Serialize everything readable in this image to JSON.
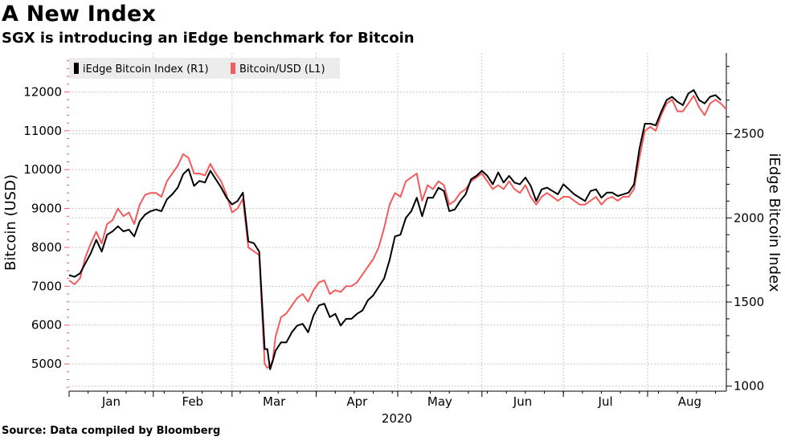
{
  "header": {
    "title": "A New Index",
    "subtitle": "SGX is introducing an iEdge benchmark for Bitcoin"
  },
  "footer": {
    "source": "Source: Data compiled by Bloomberg"
  },
  "colors": {
    "index_line": "#000000",
    "btc_line": "#f25c5c",
    "grid": "#c8c8c8",
    "axis": "#000000",
    "legend_bg": "#ececec"
  },
  "chart_data": {
    "type": "line",
    "title": "A New Index",
    "subtitle": "SGX is introducing an iEdge benchmark for Bitcoin",
    "xlabel": "2020",
    "x_ticks": [
      "Jan",
      "Feb",
      "Mar",
      "Apr",
      "May",
      "Jun",
      "Jul",
      "Aug"
    ],
    "x_range_days": [
      0,
      242
    ],
    "left_axis": {
      "label": "Bitcoin (USD)",
      "range": [
        4300,
        13000
      ],
      "ticks": [
        5000,
        6000,
        7000,
        8000,
        9000,
        10000,
        11000,
        12000
      ]
    },
    "right_axis": {
      "label": "iEdge Bitcoin Index",
      "range": [
        970,
        2980
      ],
      "ticks": [
        1000,
        1500,
        2000,
        2500
      ]
    },
    "legend": {
      "position": "top-left",
      "entries": [
        "iEdge Bitcoin Index (R1)",
        "Bitcoin/USD (L1)"
      ]
    },
    "series": [
      {
        "name": "iEdge Bitcoin Index (R1)",
        "axis": "right",
        "color": "#000000",
        "x": [
          0,
          2,
          4,
          6,
          8,
          10,
          12,
          14,
          16,
          18,
          20,
          22,
          24,
          26,
          28,
          30,
          32,
          34,
          36,
          38,
          40,
          42,
          44,
          46,
          48,
          50,
          52,
          54,
          56,
          58,
          60,
          62,
          64,
          66,
          68,
          70,
          72,
          73,
          74,
          75,
          76,
          78,
          80,
          82,
          84,
          86,
          88,
          90,
          92,
          94,
          96,
          98,
          100,
          102,
          104,
          106,
          108,
          110,
          112,
          114,
          116,
          118,
          120,
          122,
          124,
          126,
          128,
          130,
          132,
          134,
          136,
          138,
          140,
          142,
          144,
          146,
          148,
          150,
          152,
          154,
          156,
          158,
          160,
          162,
          164,
          166,
          168,
          170,
          172,
          174,
          176,
          178,
          180,
          182,
          184,
          186,
          188,
          190,
          192,
          194,
          196,
          198,
          200,
          202,
          204,
          206,
          208,
          210,
          212,
          214,
          216,
          218,
          220,
          222,
          224,
          226,
          228,
          230,
          232,
          234,
          236,
          238,
          240
        ],
        "values": [
          1660,
          1650,
          1670,
          1730,
          1790,
          1870,
          1800,
          1900,
          1920,
          1950,
          1920,
          1930,
          1890,
          1980,
          2020,
          2040,
          2050,
          2040,
          2110,
          2140,
          2180,
          2260,
          2290,
          2190,
          2220,
          2210,
          2280,
          2230,
          2180,
          2120,
          2080,
          2100,
          2150,
          1860,
          1850,
          1800,
          1220,
          1220,
          1100,
          1150,
          1210,
          1260,
          1260,
          1320,
          1360,
          1370,
          1320,
          1420,
          1480,
          1490,
          1410,
          1430,
          1360,
          1400,
          1400,
          1430,
          1450,
          1510,
          1540,
          1590,
          1640,
          1750,
          1890,
          1900,
          2000,
          2040,
          2120,
          2010,
          2120,
          2120,
          2180,
          2160,
          2040,
          2050,
          2100,
          2140,
          2230,
          2250,
          2280,
          2250,
          2200,
          2270,
          2210,
          2250,
          2210,
          2200,
          2240,
          2190,
          2100,
          2170,
          2180,
          2160,
          2140,
          2200,
          2170,
          2140,
          2120,
          2100,
          2160,
          2170,
          2120,
          2150,
          2150,
          2130,
          2140,
          2150,
          2200,
          2410,
          2560,
          2560,
          2550,
          2630,
          2700,
          2720,
          2690,
          2670,
          2740,
          2760,
          2700,
          2680,
          2720,
          2730,
          2700
        ]
      },
      {
        "name": "Bitcoin/USD (L1)",
        "axis": "left",
        "color": "#f25c5c",
        "x": [
          0,
          2,
          4,
          6,
          8,
          10,
          12,
          14,
          16,
          18,
          20,
          22,
          24,
          26,
          28,
          30,
          32,
          34,
          36,
          38,
          40,
          42,
          44,
          46,
          48,
          50,
          52,
          54,
          56,
          58,
          60,
          62,
          64,
          66,
          68,
          70,
          72,
          73,
          74,
          75,
          76,
          78,
          80,
          82,
          84,
          86,
          88,
          90,
          92,
          94,
          96,
          98,
          100,
          102,
          104,
          106,
          108,
          110,
          112,
          114,
          116,
          118,
          120,
          122,
          124,
          126,
          128,
          130,
          132,
          134,
          136,
          138,
          140,
          142,
          144,
          146,
          148,
          150,
          152,
          154,
          156,
          158,
          160,
          162,
          164,
          166,
          168,
          170,
          172,
          174,
          176,
          178,
          180,
          182,
          184,
          186,
          188,
          190,
          192,
          194,
          196,
          198,
          200,
          202,
          204,
          206,
          208,
          210,
          212,
          214,
          216,
          218,
          220,
          222,
          224,
          226,
          228,
          230,
          232,
          234,
          236,
          238,
          240,
          242
        ],
        "values": [
          7150,
          7050,
          7200,
          7750,
          8100,
          8400,
          8100,
          8600,
          8700,
          9000,
          8800,
          8900,
          8600,
          9100,
          9350,
          9400,
          9400,
          9300,
          9700,
          9900,
          10100,
          10400,
          10300,
          9900,
          9900,
          9850,
          10150,
          9900,
          9700,
          9350,
          8900,
          9000,
          9250,
          8000,
          7900,
          7800,
          5000,
          4900,
          4950,
          5100,
          5700,
          6200,
          6300,
          6500,
          6700,
          6800,
          6600,
          6900,
          7100,
          7150,
          6800,
          6900,
          6850,
          7000,
          7000,
          7100,
          7300,
          7500,
          7700,
          8000,
          8500,
          9100,
          9400,
          9300,
          9700,
          9800,
          9900,
          9200,
          9600,
          9500,
          9700,
          9600,
          9100,
          9200,
          9400,
          9500,
          9700,
          9800,
          9900,
          9700,
          9500,
          9600,
          9500,
          9700,
          9500,
          9400,
          9600,
          9300,
          9100,
          9300,
          9400,
          9300,
          9200,
          9300,
          9300,
          9200,
          9100,
          9100,
          9200,
          9300,
          9100,
          9250,
          9300,
          9200,
          9300,
          9300,
          9500,
          10300,
          11000,
          11100,
          11000,
          11400,
          11700,
          11800,
          11500,
          11500,
          11700,
          11900,
          11600,
          11400,
          11700,
          11800,
          11700,
          11550
        ]
      }
    ]
  }
}
